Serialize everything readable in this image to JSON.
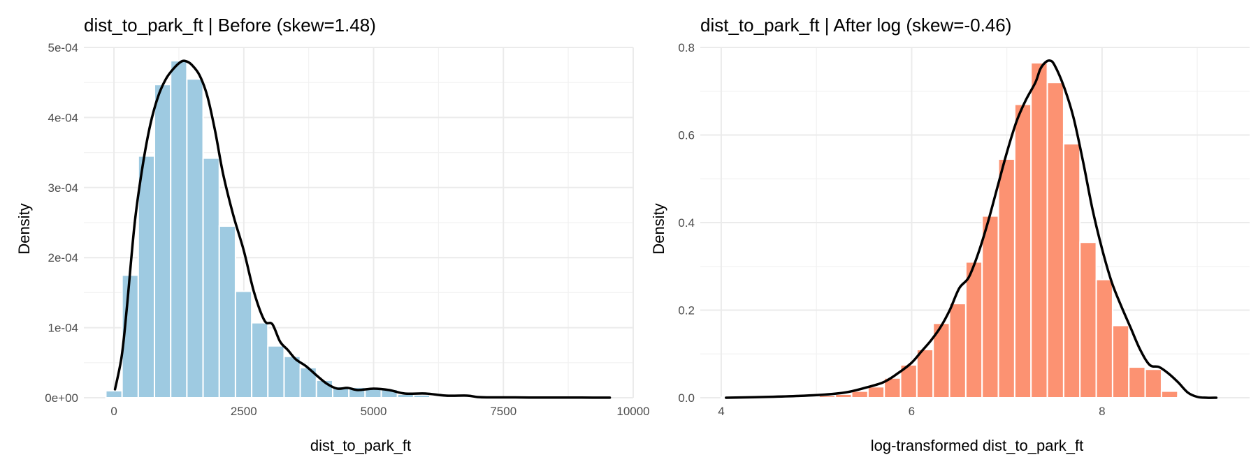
{
  "chart_data": [
    {
      "type": "bar",
      "title": "dist_to_park_ft | Before (skew=1.48)",
      "xlabel": "dist_to_park_ft",
      "ylabel": "Density",
      "bar_color": "#9ecae1",
      "curve_color": "#000000",
      "grid": true,
      "xlim": [
        -580,
        10000
      ],
      "ylim": [
        0,
        0.0005
      ],
      "x_ticks": [
        0,
        2500,
        5000,
        7500,
        10000
      ],
      "x_tick_labels": [
        "0",
        "2500",
        "5000",
        "7500",
        "10000"
      ],
      "y_ticks": [
        0,
        0.0001,
        0.0002,
        0.0003,
        0.0004,
        0.0005
      ],
      "y_tick_labels": [
        "0e+00",
        "1e-04",
        "2e-04",
        "3e-04",
        "4e-04",
        "5e-04"
      ],
      "bin_width": 312,
      "bin_centers": [
        0,
        312,
        624,
        936,
        1248,
        1560,
        1872,
        2184,
        2496,
        2808,
        3120,
        3432,
        3744,
        4056,
        4368,
        4680,
        4992,
        5304,
        5616,
        5928,
        6240,
        6552,
        6864,
        7176,
        7488,
        7800,
        8112,
        8424,
        8736,
        9048,
        9360
      ],
      "values": [
        1e-05,
        0.000175,
        0.000345,
        0.000447,
        0.000481,
        0.000455,
        0.000342,
        0.000245,
        0.000152,
        0.000107,
        7.4e-05,
        5.9e-05,
        4.3e-05,
        2.5e-05,
        1.6e-05,
        1.5e-05,
        1.3e-05,
        1.2e-05,
        5e-06,
        4e-06,
        2e-06,
        1e-06,
        1e-06,
        5e-07,
        5e-07,
        3e-07,
        3e-07,
        2e-07,
        2e-07,
        2e-07,
        2e-07
      ],
      "density_x": [
        20,
        150,
        250,
        400,
        550,
        700,
        850,
        1000,
        1150,
        1300,
        1400,
        1500,
        1650,
        1800,
        1950,
        2100,
        2300,
        2500,
        2700,
        2900,
        3050,
        3200,
        3350,
        3500,
        3700,
        3900,
        4100,
        4300,
        4500,
        4700,
        5000,
        5300,
        5600,
        6000,
        6400,
        6800,
        7000,
        7200,
        7600,
        8000,
        8500,
        9000,
        9550
      ],
      "density_y": [
        1.2e-05,
        6e-05,
        0.00013,
        0.00025,
        0.00033,
        0.00039,
        0.00043,
        0.000455,
        0.00047,
        0.00048,
        0.00048,
        0.000475,
        0.00046,
        0.00043,
        0.00038,
        0.00032,
        0.00026,
        0.00021,
        0.00015,
        0.00011,
        0.000105,
        8e-05,
        6.8e-05,
        5.5e-05,
        4.5e-05,
        3.2e-05,
        2e-05,
        1.3e-05,
        1.4e-05,
        1.1e-05,
        1.3e-05,
        1.1e-05,
        6e-06,
        6e-06,
        3e-06,
        3e-06,
        1e-06,
        5e-07,
        5e-07,
        3e-07,
        2e-07,
        2e-07,
        1e-07
      ]
    },
    {
      "type": "bar",
      "title": "dist_to_park_ft | After log (skew=-0.46)",
      "xlabel": "log-transformed dist_to_park_ft",
      "ylabel": "Density",
      "bar_color": "#fc9272",
      "curve_color": "#000000",
      "grid": true,
      "xlim": [
        3.78,
        9.55
      ],
      "ylim": [
        0,
        0.8
      ],
      "x_ticks": [
        4,
        6,
        8
      ],
      "x_tick_labels": [
        "4",
        "6",
        "8"
      ],
      "y_ticks": [
        0,
        0.2,
        0.4,
        0.6,
        0.8
      ],
      "y_tick_labels": [
        "0.0",
        "0.2",
        "0.4",
        "0.6",
        "0.8"
      ],
      "bin_width": 0.1713,
      "bin_centers": [
        4.085,
        4.2563,
        4.4276,
        4.5989,
        4.7702,
        4.9415,
        5.1128,
        5.2841,
        5.4554,
        5.6267,
        5.798,
        5.9693,
        6.1406,
        6.3119,
        6.4832,
        6.6545,
        6.8258,
        6.9971,
        7.1684,
        7.3397,
        7.511,
        7.6823,
        7.8536,
        8.0249,
        8.1962,
        8.3675,
        8.5388,
        8.7101,
        8.8814,
        9.0527
      ],
      "values": [
        0.001,
        0.001,
        0.001,
        0.001,
        0.002,
        0.003,
        0.005,
        0.008,
        0.015,
        0.025,
        0.045,
        0.075,
        0.11,
        0.17,
        0.215,
        0.31,
        0.415,
        0.545,
        0.67,
        0.765,
        0.72,
        0.58,
        0.355,
        0.27,
        0.165,
        0.07,
        0.065,
        0.015,
        0.003,
        0.001
      ],
      "density_x": [
        4.05,
        4.5,
        5.0,
        5.3,
        5.5,
        5.7,
        5.85,
        6.0,
        6.1,
        6.2,
        6.3,
        6.4,
        6.5,
        6.6,
        6.7,
        6.8,
        6.9,
        7.0,
        7.1,
        7.2,
        7.3,
        7.35,
        7.4,
        7.45,
        7.5,
        7.6,
        7.7,
        7.8,
        7.9,
        8.0,
        8.1,
        8.2,
        8.3,
        8.4,
        8.5,
        8.6,
        8.7,
        8.8,
        8.9,
        9.0,
        9.1,
        9.2
      ],
      "density_y": [
        0.0,
        0.002,
        0.006,
        0.012,
        0.022,
        0.035,
        0.055,
        0.08,
        0.105,
        0.13,
        0.16,
        0.2,
        0.25,
        0.275,
        0.33,
        0.4,
        0.48,
        0.56,
        0.63,
        0.68,
        0.72,
        0.75,
        0.765,
        0.77,
        0.76,
        0.71,
        0.64,
        0.54,
        0.43,
        0.34,
        0.265,
        0.21,
        0.16,
        0.11,
        0.075,
        0.07,
        0.055,
        0.035,
        0.012,
        0.002,
        0.0,
        0.0
      ]
    }
  ]
}
